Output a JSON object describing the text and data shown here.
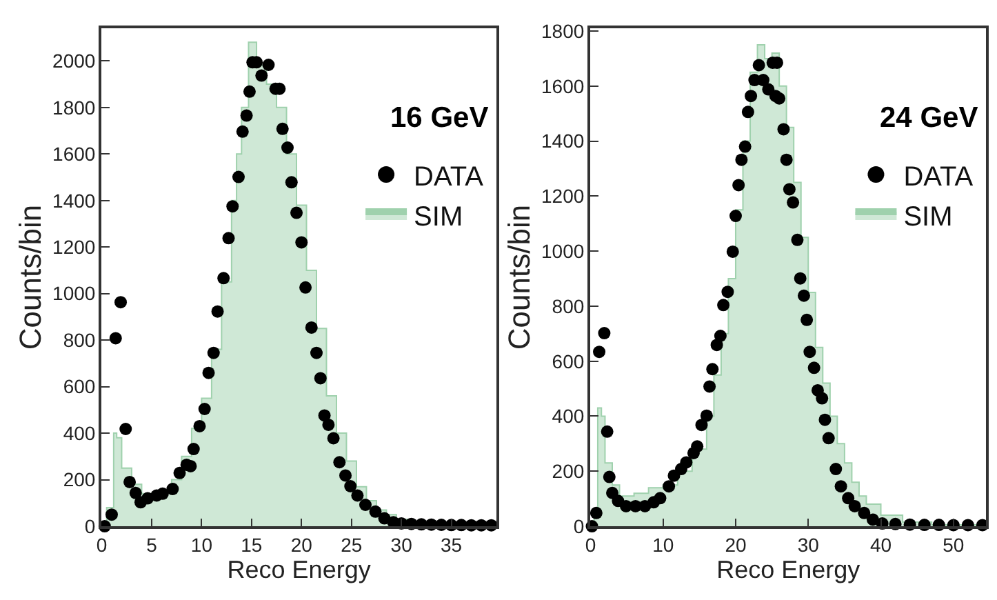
{
  "chart_data": [
    {
      "type": "scatter",
      "annotations": [
        "16 GeV"
      ],
      "xlabel": "Reco Energy",
      "ylabel": "Counts/bin",
      "xlim": [
        0,
        39.5
      ],
      "ylim": [
        0,
        2140
      ],
      "xticks": [
        0,
        5,
        10,
        15,
        20,
        25,
        30,
        35
      ],
      "yticks": [
        0,
        200,
        400,
        600,
        800,
        1000,
        1200,
        1400,
        1600,
        1800,
        2000
      ],
      "legend": "top right",
      "series": [
        {
          "name": "DATA",
          "marker": "circle",
          "color": "#000000",
          "x": [
            0.3,
            1.0,
            1.4,
            1.9,
            2.4,
            2.8,
            3.4,
            3.9,
            4.6,
            5.5,
            6.1,
            7.1,
            7.8,
            8.5,
            8.9,
            9.2,
            9.8,
            10.3,
            10.7,
            11.2,
            11.6,
            12.2,
            12.7,
            13.1,
            13.7,
            14.1,
            14.5,
            14.8,
            15.1,
            15.5,
            16.0,
            16.7,
            17.4,
            17.8,
            18.1,
            18.6,
            19.0,
            19.5,
            20.0,
            20.4,
            21.0,
            21.5,
            21.9,
            22.3,
            22.7,
            23.2,
            23.8,
            24.4,
            24.9,
            25.6,
            26.4,
            27.4,
            28.3,
            29.2,
            30,
            31,
            32,
            33,
            34,
            35,
            36,
            37,
            38,
            39
          ],
          "values": [
            0,
            50,
            808,
            963,
            418,
            190,
            143,
            103,
            120,
            132,
            140,
            160,
            229,
            264,
            258,
            332,
            430,
            504,
            659,
            745,
            923,
            1066,
            1238,
            1375,
            1501,
            1696,
            1765,
            1868,
            1994,
            1994,
            1937,
            1983,
            1880,
            1880,
            1708,
            1627,
            1478,
            1347,
            1220,
            1026,
            854,
            745,
            636,
            476,
            436,
            378,
            275,
            218,
            172,
            132,
            92,
            63,
            34,
            17,
            12,
            10,
            8,
            7,
            6,
            5,
            5,
            4,
            4,
            4
          ]
        },
        {
          "name": "SIM",
          "type": "area",
          "color": "#cfe8d6",
          "x": [
            0,
            0.5,
            1.2,
            1.5,
            2,
            3,
            4,
            5,
            6,
            7,
            8,
            9,
            10,
            11,
            12,
            13,
            13.5,
            14,
            14.7,
            15.5,
            16.5,
            17.5,
            18.5,
            19.5,
            20.5,
            21.5,
            22.5,
            23.5,
            24.5,
            25.5,
            26.5,
            27.5,
            28.5,
            29.5,
            31,
            33,
            36,
            39.5
          ],
          "values": [
            0,
            80,
            400,
            380,
            250,
            180,
            140,
            140,
            150,
            200,
            300,
            420,
            550,
            760,
            1050,
            1400,
            1600,
            1800,
            2080,
            1980,
            1900,
            1800,
            1600,
            1380,
            1100,
            850,
            560,
            400,
            280,
            170,
            110,
            70,
            50,
            30,
            15,
            8,
            4,
            2
          ]
        }
      ]
    },
    {
      "type": "scatter",
      "annotations": [
        "24 GeV"
      ],
      "xlabel": "Reco Energy",
      "ylabel": "Counts/bin",
      "xlim": [
        0,
        54.5
      ],
      "ylim": [
        0,
        1810
      ],
      "xticks": [
        0,
        10,
        20,
        30,
        40,
        50
      ],
      "yticks": [
        0,
        200,
        400,
        600,
        800,
        1000,
        1200,
        1400,
        1600,
        1800
      ],
      "legend": "top right",
      "series": [
        {
          "name": "DATA",
          "marker": "circle",
          "color": "#000000",
          "x": [
            0.2,
            0.8,
            1.2,
            1.9,
            2.3,
            2.6,
            3.0,
            3.8,
            4.9,
            6.2,
            7.5,
            8.7,
            9.6,
            10.8,
            11.5,
            12.5,
            13.2,
            14.2,
            14.7,
            15.3,
            16.0,
            16.4,
            16.8,
            17.4,
            17.9,
            18.3,
            18.9,
            19.6,
            20.0,
            20.4,
            20.8,
            21.3,
            21.7,
            22.1,
            22.6,
            23.2,
            23.8,
            24.5,
            25.1,
            25.5,
            25.7,
            26.0,
            26.6,
            27.0,
            27.4,
            27.9,
            28.5,
            28.9,
            29.4,
            29.8,
            30.2,
            30.8,
            31.3,
            31.9,
            32.3,
            32.8,
            33.8,
            34.5,
            35.5,
            36.4,
            37.7,
            38.9,
            40.2,
            42,
            44,
            46,
            48,
            50,
            52,
            54
          ],
          "values": [
            0,
            48,
            634,
            702,
            344,
            179,
            121,
            92,
            73,
            73,
            73,
            87,
            102,
            145,
            184,
            208,
            232,
            266,
            290,
            368,
            402,
            508,
            571,
            659,
            692,
            804,
            852,
            998,
            1128,
            1240,
            1332,
            1380,
            1506,
            1564,
            1622,
            1676,
            1622,
            1588,
            1685,
            1564,
            1685,
            1555,
            1443,
            1332,
            1225,
            1177,
            1041,
            901,
            838,
            750,
            634,
            576,
            494,
            465,
            387,
            320,
            208,
            145,
            102,
            73,
            48,
            24,
            10,
            8,
            6,
            5,
            5,
            4,
            4,
            4
          ]
        },
        {
          "name": "SIM",
          "type": "area",
          "color": "#cfe8d6",
          "x": [
            0,
            0.5,
            1,
            1.5,
            2,
            3,
            4,
            5,
            6,
            8,
            10,
            12,
            14,
            16,
            17,
            18,
            19,
            20,
            21,
            22,
            23,
            24,
            25,
            26,
            27,
            28,
            29,
            30,
            31,
            32,
            33,
            34,
            35,
            36,
            37,
            38,
            40,
            43,
            47,
            54
          ],
          "values": [
            0,
            50,
            430,
            400,
            230,
            150,
            110,
            110,
            120,
            140,
            150,
            200,
            280,
            400,
            550,
            700,
            900,
            1150,
            1400,
            1650,
            1750,
            1700,
            1720,
            1600,
            1450,
            1250,
            1050,
            850,
            650,
            520,
            400,
            300,
            230,
            160,
            110,
            80,
            40,
            15,
            5,
            2
          ]
        }
      ]
    }
  ]
}
